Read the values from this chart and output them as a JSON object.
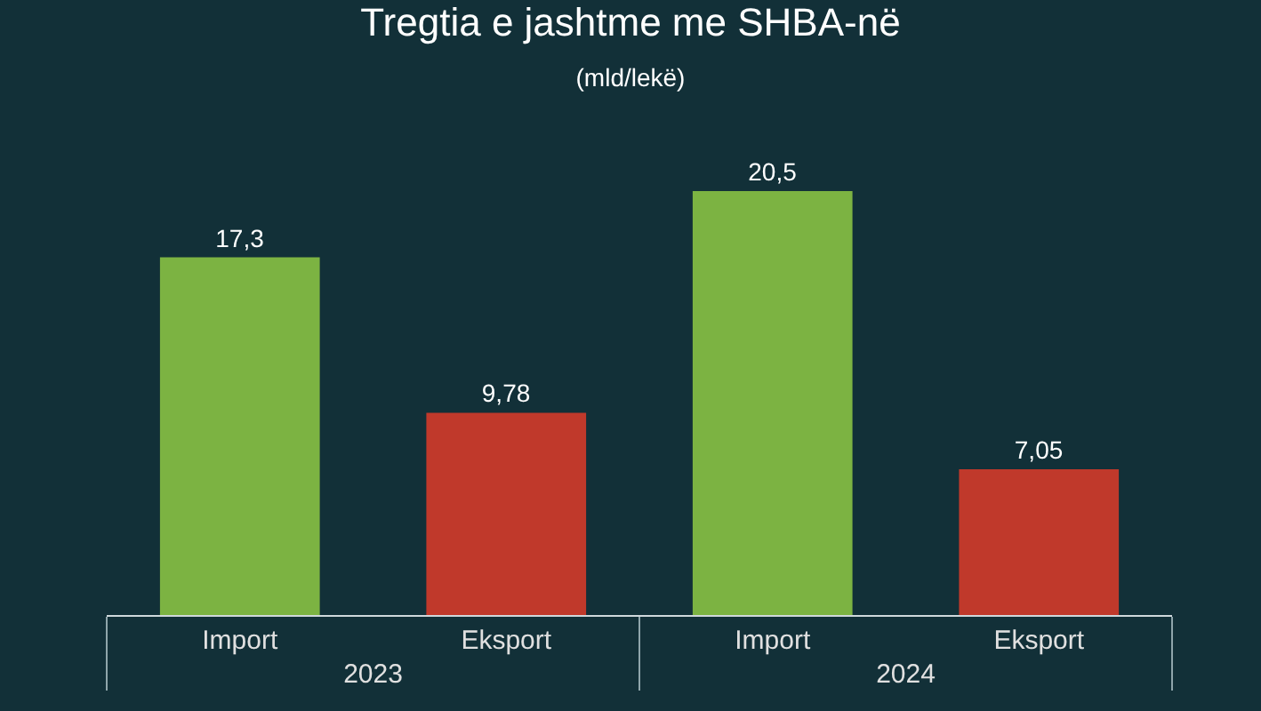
{
  "chart_data": {
    "type": "bar",
    "title": "Tregtia e jashtme me SHBA-në",
    "subtitle": "(mld/lekë)",
    "categories": [
      "2023",
      "2024"
    ],
    "series": [
      {
        "name": "Import",
        "color": "#7cb342",
        "values": [
          17.3,
          20.5
        ],
        "value_labels": [
          "17,3",
          "20,5"
        ]
      },
      {
        "name": "Eksport",
        "color": "#c0392b",
        "values": [
          9.78,
          7.05
        ],
        "value_labels": [
          "9,78",
          "7,05"
        ]
      }
    ],
    "legend": false,
    "tick_labels": "x"
  }
}
